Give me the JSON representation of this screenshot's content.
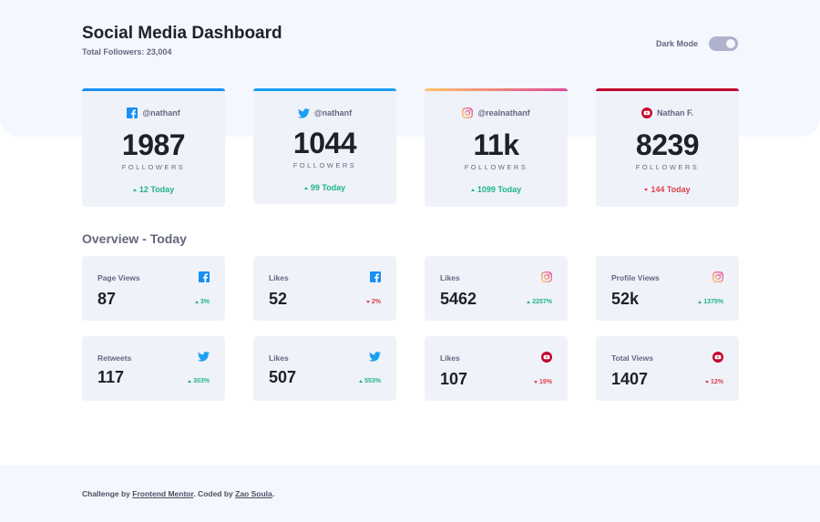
{
  "header": {
    "title": "Social Media Dashboard",
    "total_followers": "Total Followers: 23,004",
    "dark_mode_label": "Dark Mode"
  },
  "followers": [
    {
      "network": "facebook",
      "icon": "facebook-icon",
      "handle": "@nathanf",
      "count": "1987",
      "unit": "FOLLOWERS",
      "today": "12 Today",
      "trend": "up",
      "color": "#198ff5"
    },
    {
      "network": "twitter",
      "icon": "twitter-icon",
      "handle": "@nathanf",
      "count": "1044",
      "unit": "FOLLOWERS",
      "today": "99 Today",
      "trend": "up",
      "color": "#1ca0f2"
    },
    {
      "network": "instagram",
      "icon": "instagram-icon",
      "handle": "@realnathanf",
      "count": "11k",
      "unit": "FOLLOWERS",
      "today": "1099 Today",
      "trend": "up",
      "color": "#df4996"
    },
    {
      "network": "youtube",
      "icon": "youtube-icon",
      "handle": "Nathan F.",
      "count": "8239",
      "unit": "FOLLOWERS",
      "today": "144 Today",
      "trend": "down",
      "color": "#c4032a"
    }
  ],
  "overview": {
    "title": "Overview - Today",
    "cards": [
      {
        "label": "Page Views",
        "network": "facebook",
        "value": "87",
        "change": "3%",
        "trend": "up"
      },
      {
        "label": "Likes",
        "network": "facebook",
        "value": "52",
        "change": "2%",
        "trend": "down"
      },
      {
        "label": "Likes",
        "network": "instagram",
        "value": "5462",
        "change": "2257%",
        "trend": "up"
      },
      {
        "label": "Profile Views",
        "network": "instagram",
        "value": "52k",
        "change": "1375%",
        "trend": "up"
      },
      {
        "label": "Retweets",
        "network": "twitter",
        "value": "117",
        "change": "303%",
        "trend": "up"
      },
      {
        "label": "Likes",
        "network": "twitter",
        "value": "507",
        "change": "553%",
        "trend": "up"
      },
      {
        "label": "Likes",
        "network": "youtube",
        "value": "107",
        "change": "19%",
        "trend": "down"
      },
      {
        "label": "Total Views",
        "network": "youtube",
        "value": "1407",
        "change": "12%",
        "trend": "down"
      }
    ]
  },
  "footer": {
    "prefix": "Challenge by ",
    "link1": "Frontend Mentor",
    "middle": ". Coded by ",
    "link2": "Zao Soula",
    "suffix": "."
  }
}
